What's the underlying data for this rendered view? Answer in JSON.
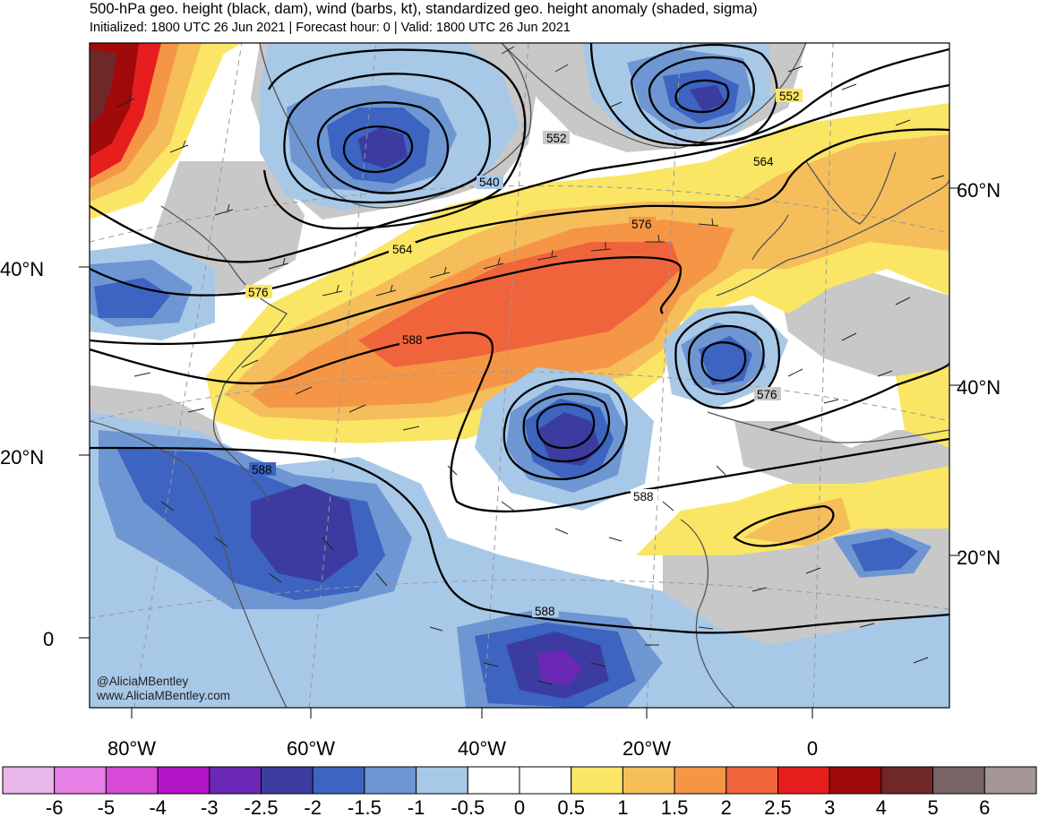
{
  "header": {
    "title": "500-hPa geo. height (black, dam), wind (barbs, kt), standardized geo. height anomaly (shaded, sigma)",
    "subtitle": "Initialized: 1800 UTC 26 Jun 2021 | Forecast hour: 0 | Valid: 1800 UTC 26 Jun 2021"
  },
  "map": {
    "lat_labels_left": [
      "40°N",
      "20°N",
      "0"
    ],
    "lat_labels_right": [
      "60°N",
      "40°N",
      "20°N"
    ],
    "lon_labels": [
      "80°W",
      "60°W",
      "40°W",
      "20°W",
      "0"
    ],
    "contour_labels": [
      "540",
      "552",
      "552",
      "564",
      "564",
      "576",
      "576",
      "576",
      "588",
      "588",
      "588",
      "588"
    ],
    "credit_line1": "@AliciaMBentley",
    "credit_line2": "www.AliciaMBentley.com",
    "colors": {
      "land_neutral": "#c8c8c8",
      "ocean_neutral": "#ffffff"
    }
  },
  "colorbar": {
    "labels": [
      "-6",
      "-5",
      "-4",
      "-3",
      "-2.5",
      "-2",
      "-1.5",
      "-1",
      "-0.5",
      "0",
      "0.5",
      "1",
      "1.5",
      "2",
      "2.5",
      "3",
      "4",
      "5",
      "6"
    ],
    "colors": [
      "#e8b6e8",
      "#e67fe6",
      "#d64ad6",
      "#b414c8",
      "#6a28b4",
      "#3c3ca0",
      "#3c64c0",
      "#6e96d2",
      "#a8c8e8",
      "#ffffff",
      "#ffffff",
      "#fae664",
      "#f5be5a",
      "#f59646",
      "#f0643c",
      "#e61e1e",
      "#a00a0a",
      "#6e2828",
      "#786464",
      "#a59696"
    ]
  }
}
